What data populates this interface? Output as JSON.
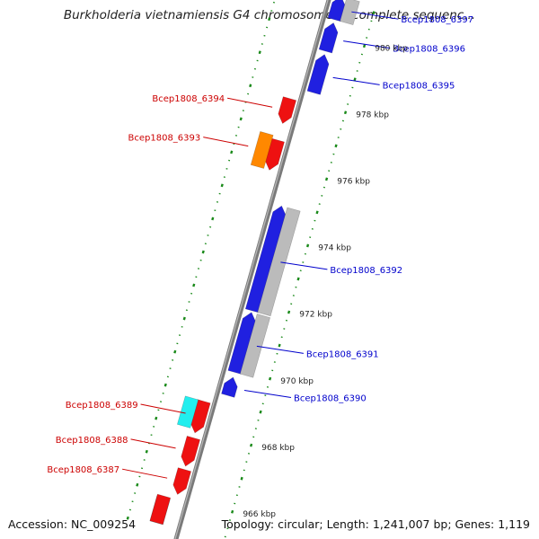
{
  "title": "Burkholderia vietnamiensis G4 chromosome 3, complete sequenc...",
  "footer": {
    "accession": "Accession: NC_009254",
    "topology": "Topology: circular; Length: 1,241,007 bp; Genes: 1,119"
  },
  "colors": {
    "backbone": "#7a7a7a",
    "ruler": "#1a8a1a",
    "gene_fwd": "#2020e0",
    "gene_fwd_label": "#0000cc",
    "gene_rev": "#ee1111",
    "gene_rev_label": "#cc0000",
    "gene_orange": "#ff8800",
    "gene_cyan": "#22eeee",
    "gene_grey": "#bbbbbb"
  },
  "ruler_ticks": [
    {
      "kbp": 966,
      "label": "966 kbp"
    },
    {
      "kbp": 968,
      "label": "968 kbp"
    },
    {
      "kbp": 970,
      "label": "970 kbp"
    },
    {
      "kbp": 972,
      "label": "972 kbp"
    },
    {
      "kbp": 974,
      "label": "974 kbp"
    },
    {
      "kbp": 976,
      "label": "976 kbp"
    },
    {
      "kbp": 978,
      "label": "978 kbp"
    },
    {
      "kbp": 980,
      "label": "980 kbp"
    }
  ],
  "genes": [
    {
      "kind": "block",
      "color": "gene_cyan",
      "start": 965.1,
      "end": 965.85
    },
    {
      "kind": "block",
      "color": "gene_rev",
      "start": 965.1,
      "end": 965.9
    },
    {
      "kind": "gene",
      "color": "gene_rev",
      "start": 966.05,
      "end": 966.8,
      "strand": "rev",
      "track": -1,
      "label": "Bcep1808_6387"
    },
    {
      "kind": "gene",
      "color": "gene_rev",
      "start": 966.9,
      "end": 967.75,
      "strand": "rev",
      "track": -1,
      "label": "Bcep1808_6388"
    },
    {
      "kind": "gene",
      "color": "gene_rev",
      "start": 967.9,
      "end": 968.85,
      "strand": "rev",
      "track": -1,
      "label": "Bcep1808_6389"
    },
    {
      "kind": "block",
      "color": "gene_cyan",
      "start": 968.0,
      "end": 968.85,
      "track": -2
    },
    {
      "kind": "gene",
      "color": "gene_fwd",
      "start": 969.2,
      "end": 969.75,
      "strand": "fwd",
      "track": 1,
      "label": "Bcep1808_6390"
    },
    {
      "kind": "gene",
      "color": "gene_fwd",
      "start": 969.9,
      "end": 971.7,
      "strand": "fwd",
      "track": 1,
      "label": "Bcep1808_6391"
    },
    {
      "kind": "block",
      "color": "gene_grey",
      "start": 969.9,
      "end": 971.7,
      "track": 2
    },
    {
      "kind": "gene",
      "color": "gene_fwd",
      "start": 971.75,
      "end": 974.9,
      "strand": "fwd",
      "track": 1,
      "label": "Bcep1808_6392"
    },
    {
      "kind": "block",
      "color": "gene_grey",
      "start": 971.75,
      "end": 974.9,
      "track": 2
    },
    {
      "kind": "gene",
      "color": "gene_rev",
      "start": 975.8,
      "end": 976.7,
      "strand": "rev",
      "track": -1,
      "label": ""
    },
    {
      "kind": "block",
      "color": "gene_orange",
      "start": 975.8,
      "end": 976.8,
      "track": -2,
      "label": "Bcep1808_6393"
    },
    {
      "kind": "gene",
      "color": "gene_rev",
      "start": 977.2,
      "end": 977.95,
      "strand": "rev",
      "track": -1,
      "label": "Bcep1808_6394"
    },
    {
      "kind": "gene",
      "color": "gene_fwd",
      "start": 978.3,
      "end": 979.45,
      "strand": "fwd",
      "track": 1,
      "label": "Bcep1808_6395"
    },
    {
      "kind": "gene",
      "color": "gene_fwd",
      "start": 979.55,
      "end": 980.4,
      "strand": "fwd",
      "track": 1,
      "label": "Bcep1808_6396"
    },
    {
      "kind": "gene",
      "color": "gene_fwd",
      "start": 980.5,
      "end": 981.2,
      "strand": "fwd",
      "track": 1,
      "label": "Bcep1808_6397"
    },
    {
      "kind": "block",
      "color": "gene_grey",
      "start": 980.5,
      "end": 981.2,
      "track": 2
    }
  ]
}
